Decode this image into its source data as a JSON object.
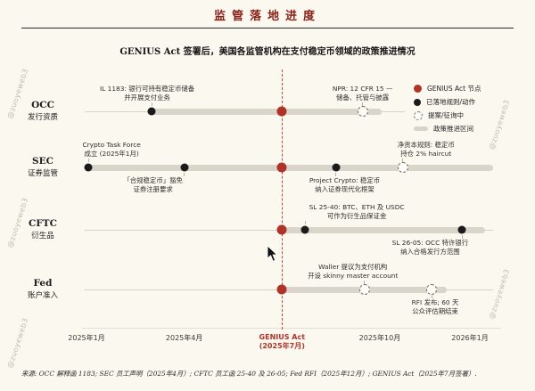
{
  "header": {
    "title": "监管落地进度",
    "subtitle": "GENIUS Act 签署后，美国各监管机构在支付稳定币领域的政策推进情况"
  },
  "footer": {
    "source": "来源: OCC 解释函 1183; SEC 员工声明（2025年4月）; CFTC 员工函 25-40 及 26-05; Fed RFI（2025年12月）; GENIUS Act（2025年7月签署）."
  },
  "watermark": "@zuoyeweb3",
  "colors": {
    "background": "#fbf8f0",
    "accent_red": "#b03328",
    "dot_black": "#1b1b1b",
    "bar_gray": "#d9d5cb",
    "title_red": "#8a2118"
  },
  "legend": {
    "items": [
      {
        "marker": "genius",
        "label": "GENIUS Act 节点"
      },
      {
        "marker": "done",
        "label": "已落地规则/动作"
      },
      {
        "marker": "proposed",
        "label": "提案/征询中"
      },
      {
        "marker": "range",
        "label": "政策推进区间"
      }
    ]
  },
  "chart_data": {
    "type": "timeline",
    "title": "监管落地进度",
    "subtitle": "GENIUS Act 签署后，美国各监管机构在支付稳定币领域的政策推进情况",
    "x_axis_unit": "月份",
    "x_ticks": [
      {
        "pct": 0,
        "label": "2025年1月",
        "highlight": false
      },
      {
        "pct": 25.5,
        "label": "2025年4月",
        "highlight": false
      },
      {
        "pct": 51,
        "label": "GENIUS Act",
        "label2": "(2025年7月)",
        "highlight": true
      },
      {
        "pct": 76.5,
        "label": "2025年10月",
        "highlight": false
      },
      {
        "pct": 100,
        "label": "2026年1月",
        "highlight": false
      }
    ],
    "rows": [
      {
        "agency": "OCC",
        "agency_sub": "发行资质",
        "line": {
          "start": -0.5,
          "end": 83
        },
        "bar": {
          "start": 16,
          "end": 77
        },
        "events": [
          {
            "pct": 17,
            "marker": "done",
            "label": "IL 1183: 银行可持有稳定币储备\n并开展支付业务",
            "side": "above",
            "dx": -5
          },
          {
            "pct": 51,
            "marker": "genius"
          },
          {
            "pct": 72,
            "marker": "proposed",
            "label": "NPR: 12 CFR 15 —\n储备、托管与披露",
            "side": "above",
            "dx": 0
          }
        ]
      },
      {
        "agency": "SEC",
        "agency_sub": "证券监管",
        "line": {
          "start": -0.5,
          "end": 106
        },
        "bar": {
          "start": 0.5,
          "end": 106
        },
        "events": [
          {
            "pct": 0.5,
            "marker": "done",
            "label": "Crypto Task Force\n成立 (2025年1月)",
            "side": "above",
            "dx": 26
          },
          {
            "pct": 25.5,
            "marker": "done",
            "label": "「合规稳定币」豁免\n证券注册要求",
            "side": "below",
            "dx": -35
          },
          {
            "pct": 51,
            "marker": "genius"
          },
          {
            "pct": 65,
            "marker": "done",
            "label": "Project Crypto: 稳定币\n纳入证券现代化框架",
            "side": "below",
            "dx": 10
          },
          {
            "pct": 82.5,
            "marker": "proposed",
            "label": "净资本规则: 稳定币\n持仓 2% haircut",
            "side": "above",
            "dx": 26
          }
        ]
      },
      {
        "agency": "CFTC",
        "agency_sub": "衍生品",
        "line": {
          "start": -0.5,
          "end": 106
        },
        "bar": {
          "start": 51,
          "end": 104
        },
        "events": [
          {
            "pct": 51,
            "marker": "genius"
          },
          {
            "pct": 57,
            "marker": "done",
            "label": "SL 25-40: BTC、ETH 及 USDC\n可作为衍生品保证金",
            "side": "above",
            "dx": 58
          },
          {
            "pct": 98,
            "marker": "done",
            "label": "SL 26-05: OCC 特许银行\n纳入合格发行方范围",
            "side": "below",
            "dx": -36
          }
        ]
      },
      {
        "agency": "Fed",
        "agency_sub": "账户准入",
        "line": {
          "start": -0.5,
          "end": 106
        },
        "bar": {
          "start": 51,
          "end": 94
        },
        "events": [
          {
            "pct": 51,
            "marker": "genius"
          },
          {
            "pct": 72.5,
            "marker": "proposed",
            "label": "Waller 提议为支付机构\n开设 skinny master account",
            "side": "above",
            "dx": -13
          },
          {
            "pct": 90,
            "marker": "proposed",
            "label": "RFI 发布; 60 天\n公众评估期结束",
            "side": "below",
            "dx": 4
          }
        ]
      }
    ]
  }
}
